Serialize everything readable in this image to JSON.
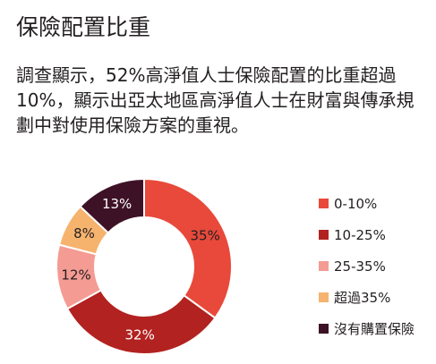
{
  "title": "保險配置比重",
  "description": "調查顯示，52%高淨值人士保險配置的比重超過10%，顯示出亞太地區高淨值人士在財富與傳承規劃中對使用保險方案的重視。",
  "chart_data": {
    "type": "pie",
    "donut": true,
    "categories": [
      "0-10%",
      "10-25%",
      "25-35%",
      "超過35%",
      "沒有購置保險"
    ],
    "values": [
      35,
      32,
      12,
      8,
      13
    ],
    "labels": [
      "35%",
      "32%",
      "12%",
      "8%",
      "13%"
    ],
    "colors": [
      "#e8493b",
      "#b22220",
      "#f49b94",
      "#f6b36e",
      "#3e1226"
    ],
    "label_colors": [
      "#231f20",
      "#ffffff",
      "#231f20",
      "#231f20",
      "#ffffff"
    ],
    "start": "top",
    "direction": "clockwise",
    "legend_position": "right"
  }
}
